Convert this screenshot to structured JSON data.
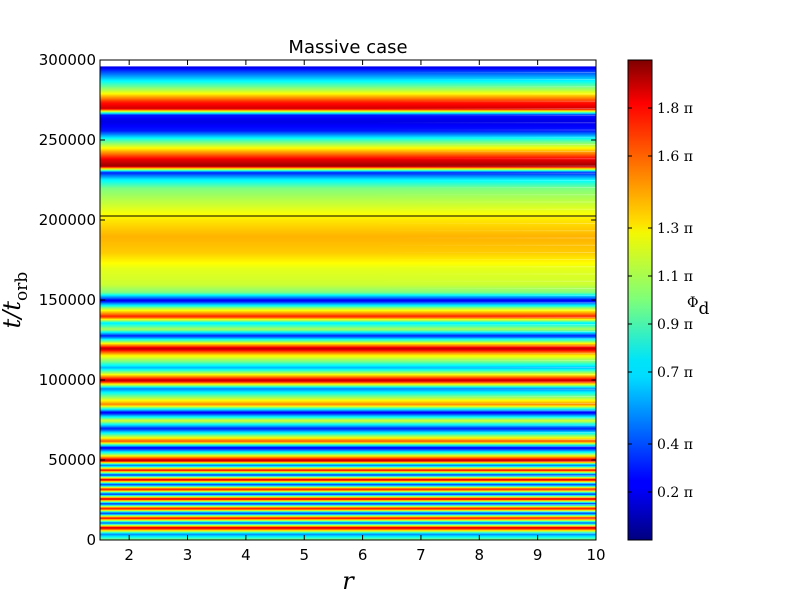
{
  "chart_data": {
    "type": "heatmap",
    "title": "Massive case",
    "xlabel": "r",
    "ylabel_main": "t/t",
    "ylabel_sub": "orb",
    "xlim": [
      1.5,
      10
    ],
    "ylim": [
      0,
      300000
    ],
    "x_ticks": [
      2,
      3,
      4,
      5,
      6,
      7,
      8,
      9,
      10
    ],
    "x_tick_labels": [
      "2",
      "3",
      "4",
      "5",
      "6",
      "7",
      "8",
      "9",
      "10"
    ],
    "y_ticks": [
      0,
      50000,
      100000,
      150000,
      200000,
      250000,
      300000
    ],
    "y_tick_labels": [
      "0",
      "50000",
      "100000",
      "150000",
      "200000",
      "250000",
      "300000"
    ],
    "data_ymax": 296000,
    "colorbar": {
      "label_main": "Φ",
      "label_sub": "d",
      "colormap": "jet",
      "range_pi": [
        0,
        2
      ],
      "ticks_pi": [
        0.2,
        0.4,
        0.7,
        0.9,
        1.1,
        1.3,
        1.6,
        1.8
      ],
      "tick_labels": [
        "0.2 π",
        "0.4 π",
        "0.7 π",
        "0.9 π",
        "1.1 π",
        "1.3 π",
        "1.6 π",
        "1.8 π"
      ]
    },
    "phase_profile_pi": {
      "t": [
        0,
        4000,
        8000,
        11000,
        14000,
        17000,
        20000,
        23000,
        26000,
        29000,
        32000,
        35000,
        38000,
        41000,
        44000,
        47000,
        50000,
        54000,
        58000,
        62000,
        66000,
        70000,
        75000,
        80000,
        85000,
        90000,
        95000,
        100000,
        104000,
        108000,
        112000,
        116000,
        120000,
        124000,
        128000,
        132000,
        136000,
        140000,
        145000,
        150000,
        155000,
        160000,
        170000,
        180000,
        190000,
        200000,
        210000,
        220000,
        226000,
        230000,
        234000,
        238000,
        242000,
        250000,
        256000,
        262000,
        266000,
        270000,
        274000,
        280000,
        288000,
        296000
      ],
      "phase": [
        1.1,
        0.5,
        1.9,
        0.4,
        1.8,
        0.3,
        1.8,
        0.3,
        1.9,
        0.3,
        1.8,
        0.3,
        1.9,
        0.3,
        1.8,
        0.4,
        1.95,
        1.0,
        0.2,
        1.6,
        0.95,
        0.3,
        1.2,
        0.2,
        1.5,
        1.0,
        0.5,
        1.9,
        1.2,
        0.6,
        1.0,
        1.3,
        1.9,
        1.1,
        0.3,
        1.1,
        0.7,
        1.7,
        1.1,
        0.2,
        1.0,
        1.15,
        1.2,
        1.35,
        1.4,
        1.3,
        1.15,
        1.0,
        0.7,
        0.3,
        1.95,
        1.8,
        1.5,
        0.9,
        0.3,
        0.2,
        0.3,
        1.85,
        1.7,
        1.2,
        0.7,
        0.2
      ]
    }
  }
}
